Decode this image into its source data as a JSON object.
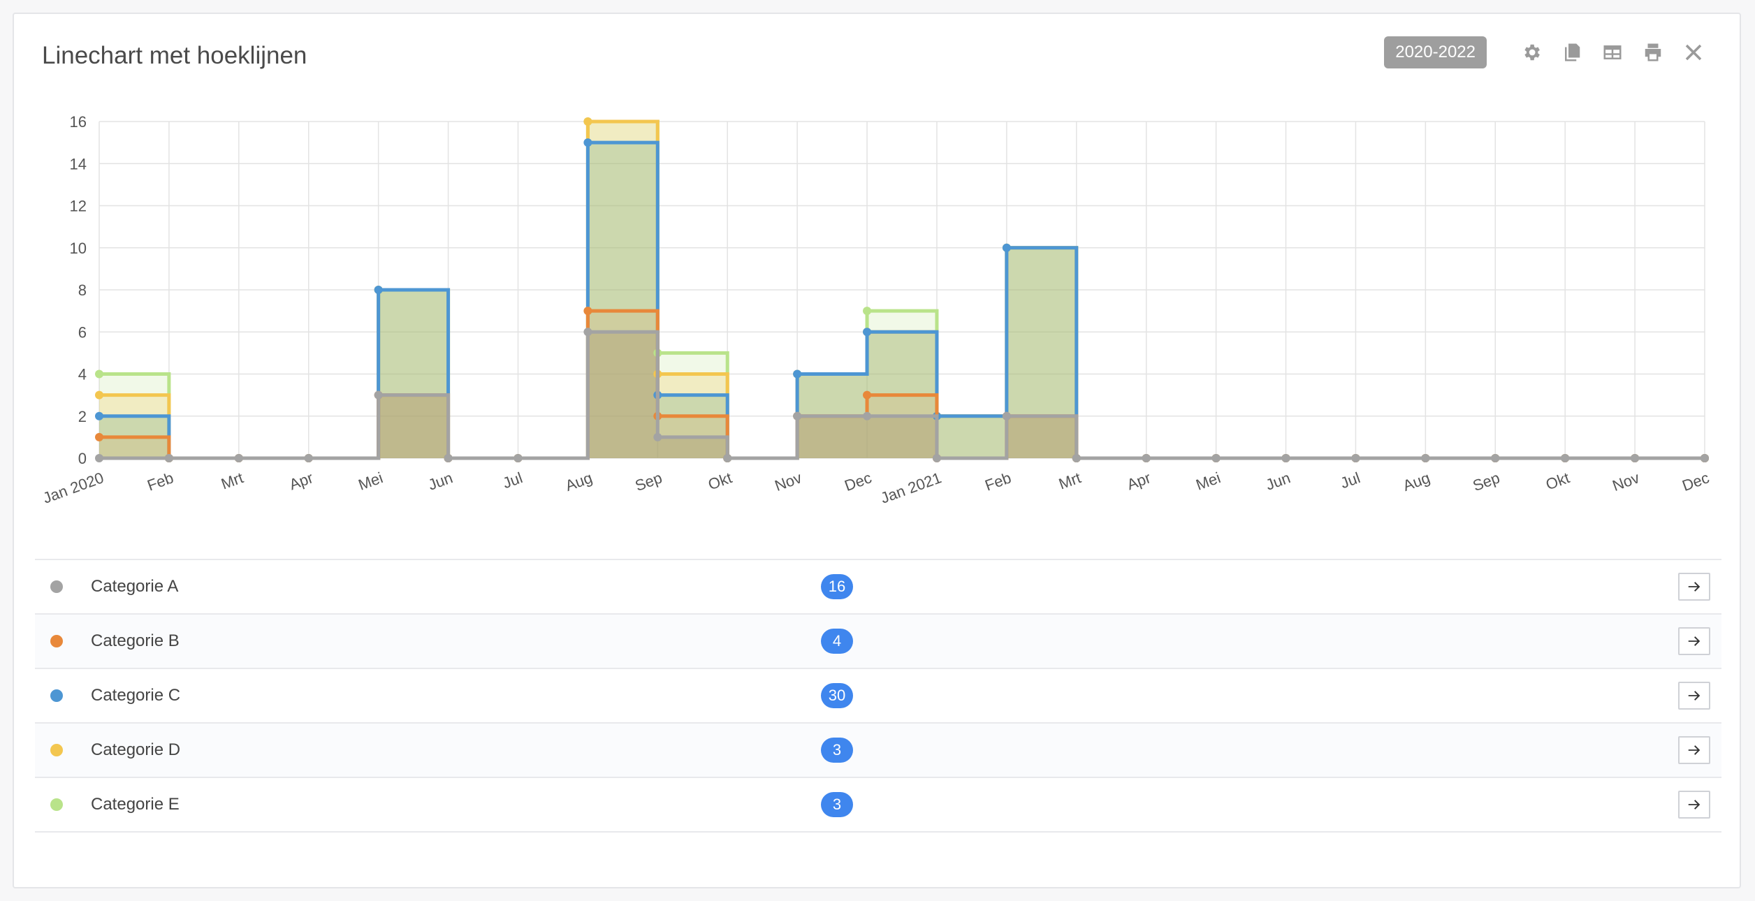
{
  "widget": {
    "title": "Linechart met hoeklijnen",
    "period": "2020-2022"
  },
  "toolbar": {
    "icons": [
      "gear-icon",
      "copy-icon",
      "table-icon",
      "print-icon",
      "close-icon"
    ]
  },
  "chart_data": {
    "type": "area",
    "title": "",
    "xlabel": "",
    "ylabel": "",
    "step": true,
    "stacked": true,
    "ylim": [
      0,
      16
    ],
    "yticks": [
      0,
      2,
      4,
      6,
      8,
      10,
      12,
      14,
      16
    ],
    "categories": [
      "Jan 2020",
      "Feb",
      "Mrt",
      "Apr",
      "Mei",
      "Jun",
      "Jul",
      "Aug",
      "Sep",
      "Okt",
      "Nov",
      "Dec",
      "Jan 2021",
      "Feb",
      "Mrt",
      "Apr",
      "Mei",
      "Jun",
      "Jul",
      "Aug",
      "Sep",
      "Okt",
      "Nov",
      "Dec"
    ],
    "series": [
      {
        "name": "Categorie A",
        "color": "#a3a3a3",
        "values": [
          0,
          0,
          0,
          0,
          3,
          0,
          0,
          6,
          1,
          0,
          2,
          2,
          0,
          2,
          0,
          0,
          0,
          0,
          0,
          0,
          0,
          0,
          0,
          0
        ]
      },
      {
        "name": "Categorie B",
        "color": "#e8883a",
        "values": [
          1,
          0,
          0,
          0,
          0,
          0,
          0,
          1,
          1,
          0,
          0,
          1,
          0,
          0,
          0,
          0,
          0,
          0,
          0,
          0,
          0,
          0,
          0,
          0
        ]
      },
      {
        "name": "Categorie C",
        "color": "#4d96d3",
        "values": [
          1,
          0,
          0,
          0,
          5,
          0,
          0,
          8,
          1,
          0,
          2,
          3,
          2,
          8,
          0,
          0,
          0,
          0,
          0,
          0,
          0,
          0,
          0,
          0
        ]
      },
      {
        "name": "Categorie D",
        "color": "#f3c64f",
        "values": [
          1,
          0,
          0,
          0,
          0,
          0,
          0,
          1,
          1,
          0,
          0,
          0,
          0,
          0,
          0,
          0,
          0,
          0,
          0,
          0,
          0,
          0,
          0,
          0
        ]
      },
      {
        "name": "Categorie E",
        "color": "#b9e38a",
        "values": [
          1,
          0,
          0,
          0,
          0,
          0,
          0,
          0,
          1,
          0,
          0,
          1,
          0,
          0,
          0,
          0,
          0,
          0,
          0,
          0,
          0,
          0,
          0,
          0
        ]
      }
    ],
    "grid": true,
    "legend": "bottom-list"
  },
  "legend": {
    "rows": [
      {
        "label": "Categorie A",
        "count": "16",
        "color": "#a3a3a3"
      },
      {
        "label": "Categorie B",
        "count": "4",
        "color": "#e8883a"
      },
      {
        "label": "Categorie C",
        "count": "30",
        "color": "#4d96d3"
      },
      {
        "label": "Categorie D",
        "count": "3",
        "color": "#f3c64f"
      },
      {
        "label": "Categorie E",
        "count": "3",
        "color": "#b9e38a"
      }
    ]
  }
}
